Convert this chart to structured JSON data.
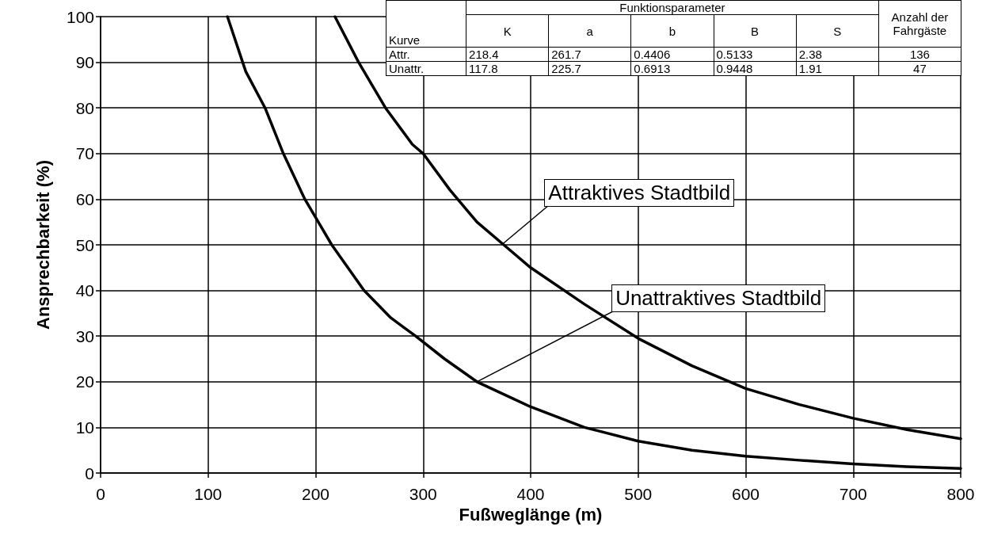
{
  "chart_data": {
    "type": "line",
    "xlabel": "Fußweglänge (m)",
    "ylabel": "Ansprechbarkeit (%)",
    "series": [
      {
        "color": "#000000",
        "x": [
          218,
          240,
          265,
          290,
          300,
          325,
          350,
          375,
          400,
          450,
          500,
          550,
          600,
          650,
          700,
          750,
          800
        ],
        "values": [
          100,
          90,
          80,
          72,
          70,
          62,
          55,
          50,
          45,
          37,
          29.5,
          23.5,
          18.5,
          15,
          12,
          9.5,
          7.5
        ]
      },
      {
        "color": "#000000",
        "x": [
          118,
          135,
          153,
          170,
          190,
          200,
          215,
          245,
          270,
          293,
          320,
          350,
          400,
          450,
          500,
          550,
          600,
          650,
          700,
          750,
          800
        ],
        "values": [
          100,
          88,
          80,
          70,
          60,
          56,
          50,
          40,
          34,
          30,
          25,
          20,
          14.5,
          10,
          7,
          5,
          3.7,
          2.8,
          2,
          1.4,
          1
        ]
      }
    ],
    "xlim": [
      0,
      800
    ],
    "xticks": [
      0,
      100,
      200,
      300,
      400,
      500,
      600,
      700,
      800
    ],
    "ylim": [
      0,
      100
    ],
    "yticks": [
      0,
      10,
      20,
      30,
      40,
      50,
      60,
      70,
      80,
      90,
      100
    ],
    "grid": true,
    "marker": "none",
    "line_style": "solid",
    "annotations": [
      {
        "text": "Attraktives Stadtbild",
        "x": 373,
        "y": 50
      },
      {
        "text": "Unattraktives Stadtbild",
        "x": 350,
        "y": 20
      },
      "Kurve",
      "Funktionsparameter",
      "Anzahl der Fahrgäste",
      "K",
      "a",
      "b",
      "B",
      "S",
      "Attr.",
      "218.4",
      "261.7",
      "0.4406",
      "0.5133",
      "2.38",
      "136",
      "Unattr.",
      "117.8",
      "225.7",
      "0.6913",
      "0.9448",
      "1.91",
      "47"
    ]
  }
}
